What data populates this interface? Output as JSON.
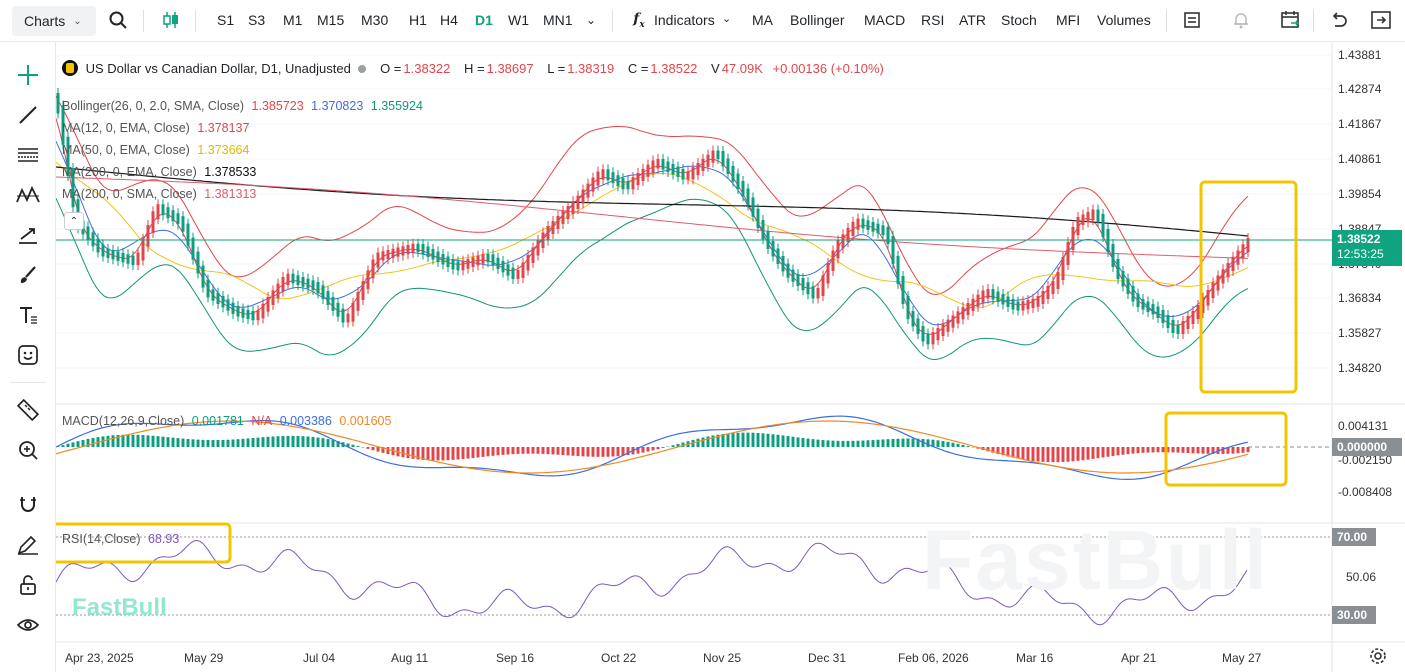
{
  "toolbar": {
    "charts_label": "Charts",
    "timeframes": [
      "S1",
      "S3",
      "M1",
      "M15",
      "M30",
      "H1",
      "H4",
      "D1",
      "W1",
      "MN1"
    ],
    "active_timeframe": "D1",
    "indicators_label": "Indicators",
    "quick_indicators": [
      "MA",
      "Bollinger",
      "MACD",
      "RSI",
      "ATR",
      "Stoch",
      "MFI",
      "Volumes"
    ]
  },
  "legend": {
    "title": "US Dollar vs Canadian Dollar, D1, Unadjusted",
    "open_label": "O =",
    "open": "1.38322",
    "high_label": "H =",
    "high": "1.38697",
    "low_label": "L =",
    "low": "1.38319",
    "close_label": "C =",
    "close": "1.38522",
    "volume_label": "V",
    "volume": "47.09K",
    "change": "+0.00136 (+0.10%)"
  },
  "indicators": {
    "bollinger": {
      "label": "Bollinger(26, 0, 2.0, SMA, Close)",
      "upper": "1.385723",
      "mid": "1.370823",
      "lower": "1.355924"
    },
    "ma12": {
      "label": "MA(12, 0, EMA, Close)",
      "value": "1.378137"
    },
    "ma50": {
      "label": "MA(50, 0, EMA, Close)",
      "value": "1.373664"
    },
    "ma200ema": {
      "label": "MA(200, 0, EMA, Close)",
      "value": "1.378533"
    },
    "ma200sma": {
      "label": "MA(200, 0, SMA, Close)",
      "value": "1.381313"
    }
  },
  "macd": {
    "label": "MACD(12,26,9,Close)",
    "v1": "0.001781",
    "v2": "N/A",
    "v3": "0.003386",
    "v4": "0.001605"
  },
  "rsi": {
    "label": "RSI(14,Close)",
    "value": "68.93"
  },
  "price_axis": [
    "1.43881",
    "1.42874",
    "1.41867",
    "1.40861",
    "1.39854",
    "1.38847",
    "1.37840",
    "1.36834",
    "1.35827",
    "1.34820"
  ],
  "current_price": "1.38522",
  "countdown": "12:53:25",
  "macd_axis": [
    "0.004131",
    "-0.002150",
    "-0.008408"
  ],
  "macd_zero_tag": "0.000000",
  "rsi_axis": {
    "top": "70.00",
    "mid": "50.06",
    "bottom": "30.00"
  },
  "time_axis": [
    "Apr 23, 2025",
    "May 29",
    "Jul 04",
    "Aug 11",
    "Sep 16",
    "Oct 22",
    "Nov 25",
    "Dec 31",
    "Feb 06, 2026",
    "Mar 16",
    "Apr 21",
    "May 27"
  ],
  "watermark": "FastBull",
  "colors": {
    "up": "#e0474c",
    "down": "#0d9e80",
    "accent": "#0fa37f",
    "bb_upper": "#e0474c",
    "bb_mid": "#3b6fe0",
    "bb_lower": "#11957a",
    "ma12": "#e0474c",
    "ma50": "#f0c419",
    "ma200ema": "#1a1a1a",
    "ma200sma": "#e05c6b",
    "highlight": "#f5c400",
    "rsi_line": "#7e57c2"
  }
}
